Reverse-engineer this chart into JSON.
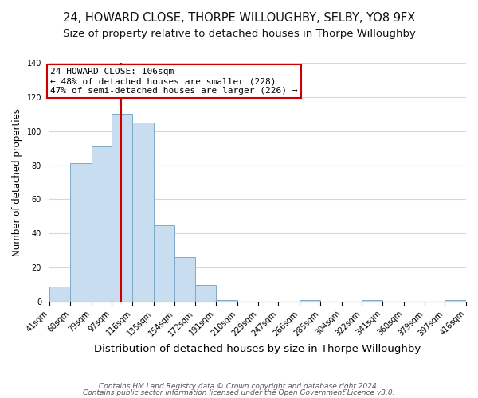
{
  "title": "24, HOWARD CLOSE, THORPE WILLOUGHBY, SELBY, YO8 9FX",
  "subtitle": "Size of property relative to detached houses in Thorpe Willoughby",
  "xlabel": "Distribution of detached houses by size in Thorpe Willoughby",
  "ylabel": "Number of detached properties",
  "bin_edges": [
    41,
    60,
    79,
    97,
    116,
    135,
    154,
    172,
    191,
    210,
    229,
    247,
    266,
    285,
    304,
    322,
    341,
    360,
    379,
    397,
    416
  ],
  "bin_labels": [
    "41sqm",
    "60sqm",
    "79sqm",
    "97sqm",
    "116sqm",
    "135sqm",
    "154sqm",
    "172sqm",
    "191sqm",
    "210sqm",
    "229sqm",
    "247sqm",
    "266sqm",
    "285sqm",
    "304sqm",
    "322sqm",
    "341sqm",
    "360sqm",
    "379sqm",
    "397sqm",
    "416sqm"
  ],
  "counts": [
    9,
    81,
    91,
    110,
    105,
    45,
    26,
    10,
    1,
    0,
    0,
    0,
    1,
    0,
    0,
    1,
    0,
    0,
    0,
    1
  ],
  "bar_color": "#c8ddf0",
  "bar_edgecolor": "#7baac8",
  "vline_x": 106,
  "vline_color": "#cc0000",
  "annotation_line1": "24 HOWARD CLOSE: 106sqm",
  "annotation_line2": "← 48% of detached houses are smaller (228)",
  "annotation_line3": "47% of semi-detached houses are larger (226) →",
  "annotation_box_color": "#ffffff",
  "annotation_box_edgecolor": "#cc0000",
  "ylim": [
    0,
    140
  ],
  "yticks": [
    0,
    20,
    40,
    60,
    80,
    100,
    120,
    140
  ],
  "footer_line1": "Contains HM Land Registry data © Crown copyright and database right 2024.",
  "footer_line2": "Contains public sector information licensed under the Open Government Licence v3.0.",
  "title_fontsize": 10.5,
  "subtitle_fontsize": 9.5,
  "xlabel_fontsize": 9.5,
  "ylabel_fontsize": 8.5,
  "tick_fontsize": 7,
  "annotation_fontsize": 8,
  "footer_fontsize": 6.5,
  "background_color": "#ffffff",
  "grid_color": "#d0d8e0"
}
